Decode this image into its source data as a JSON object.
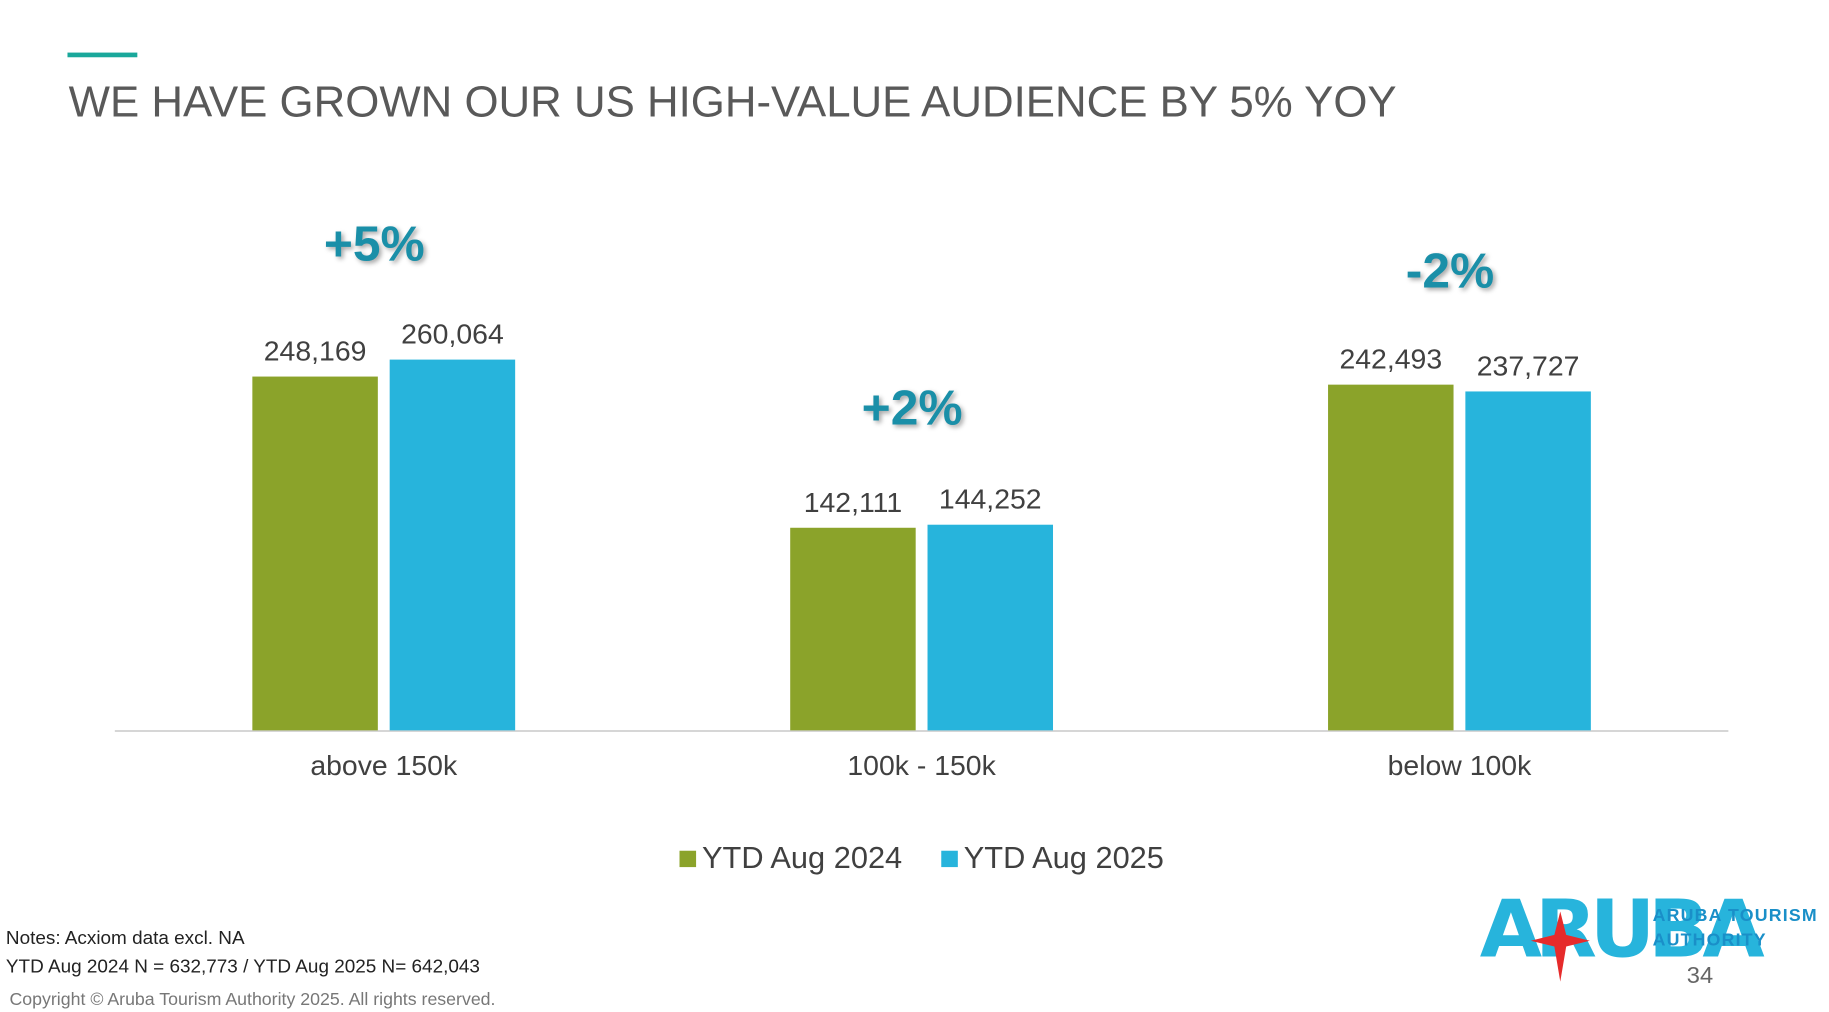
{
  "title": "WE HAVE GROWN OUR US HIGH-VALUE AUDIENCE BY 5% YOY",
  "chart_data": {
    "type": "bar",
    "categories": [
      "above 150k",
      "100k - 150k",
      "below 100k"
    ],
    "series": [
      {
        "name": "YTD Aug 2024",
        "color": "#8ba32a",
        "values": [
          248169,
          142111,
          242493
        ],
        "value_labels": [
          "248,169",
          "142,111",
          "242,493"
        ]
      },
      {
        "name": "YTD Aug 2025",
        "color": "#27b4dc",
        "values": [
          260064,
          144252,
          237727
        ],
        "value_labels": [
          "260,064",
          "144,252",
          "237,727"
        ]
      }
    ],
    "annotations": [
      "+5%",
      "+2%",
      "-2%"
    ],
    "ylim": [
      0,
      300000
    ],
    "legend": "bottom"
  },
  "notes": [
    "Notes: Acxiom data excl. NA",
    "YTD Aug 2024 N = 632,773 / YTD Aug 2025 N= 642,043"
  ],
  "copyright": "Copyright © Aruba Tourism Authority 2025. All rights reserved.",
  "logo": {
    "mark": "ARUBA",
    "lines": [
      "ARUBA TOURISM",
      "AUTHORITY"
    ]
  },
  "page_number": "34"
}
